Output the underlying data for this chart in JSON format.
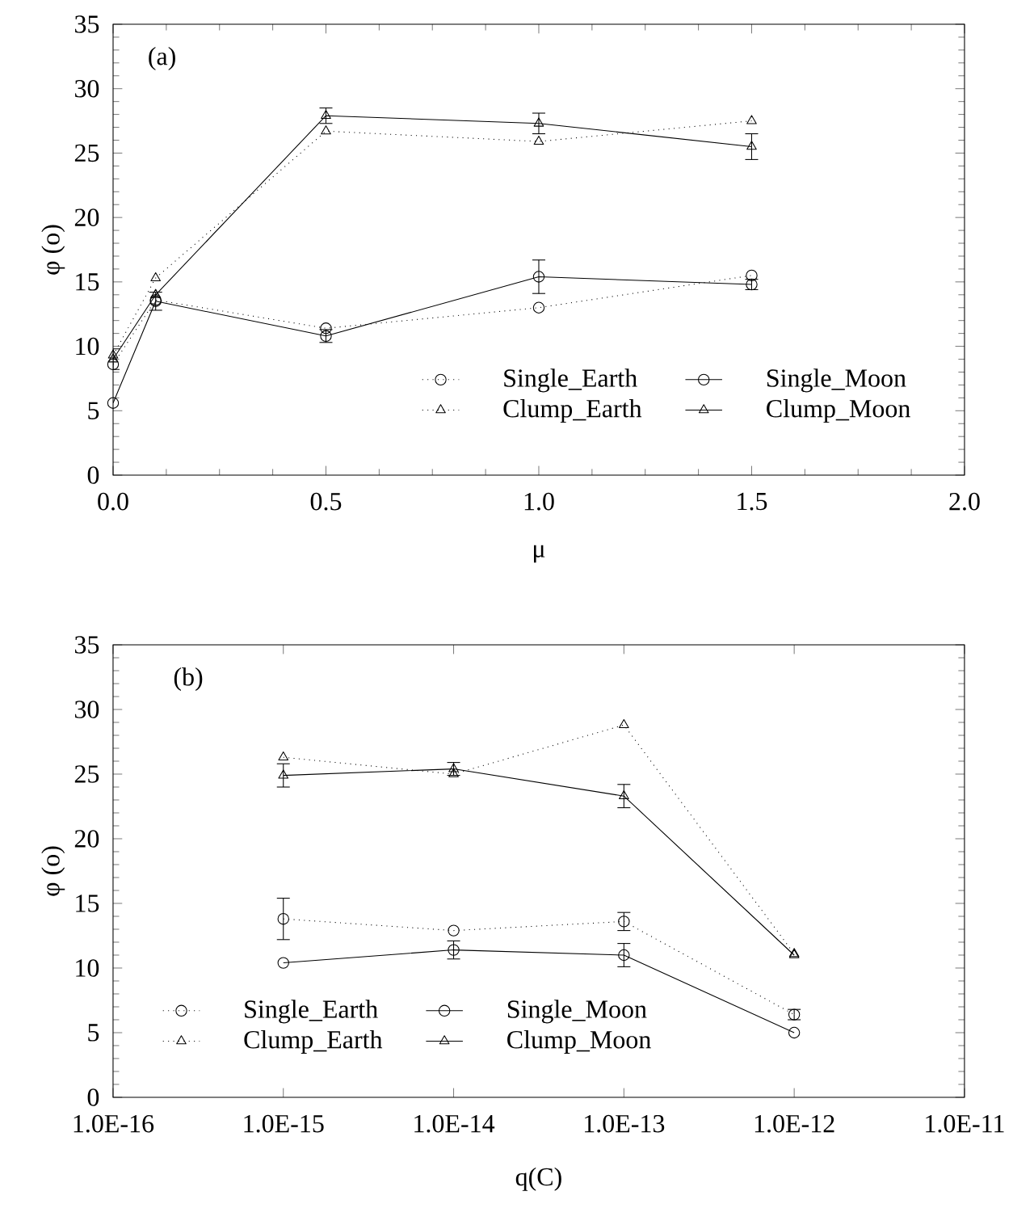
{
  "chart_data": [
    {
      "type": "line",
      "xlabel": "μ",
      "ylabel": "φ (o)",
      "annotations": [
        "(a)"
      ],
      "x": [
        0,
        0.1,
        0.5,
        1.0,
        1.5
      ],
      "xlim": [
        0,
        2
      ],
      "xticks": [
        {
          "value": 0,
          "label": "0.0"
        },
        {
          "value": 0.5,
          "label": "0.5"
        },
        {
          "value": 1,
          "label": "1.0"
        },
        {
          "value": 1.5,
          "label": "1.5"
        },
        {
          "value": 2,
          "label": "2.0"
        }
      ],
      "ylim": [
        0,
        35
      ],
      "yticks": [
        0,
        5,
        10,
        15,
        20,
        25,
        30,
        35
      ],
      "grid": false,
      "legend": "bottom right",
      "series": [
        {
          "name": "Single_Earth",
          "color": "#000000",
          "marker": "circle",
          "line_style": "dotted",
          "values": [
            8.6,
            13.6,
            11.4,
            13.0,
            15.5
          ]
        },
        {
          "name": "Single_Moon",
          "color": "#000000",
          "marker": "circle",
          "line_style": "solid",
          "values": [
            5.6,
            13.5,
            10.8,
            15.4,
            14.8
          ],
          "errors": [
            null,
            0.7,
            0.5,
            1.3,
            0.4
          ]
        },
        {
          "name": "Clump_Earth",
          "color": "#000000",
          "marker": "triangle",
          "line_style": "dotted",
          "values": [
            9.3,
            15.3,
            26.7,
            25.9,
            27.5
          ]
        },
        {
          "name": "Clump_Moon",
          "color": "#000000",
          "marker": "triangle",
          "line_style": "solid",
          "values": [
            9.0,
            14.0,
            27.9,
            27.3,
            25.5
          ],
          "errors": [
            0.8,
            null,
            0.6,
            0.8,
            1.0
          ]
        }
      ]
    },
    {
      "type": "line",
      "xlabel": "q(C)",
      "ylabel": "φ (o)",
      "annotations": [
        "(b)"
      ],
      "log": "x",
      "x": [
        1e-15,
        1e-14,
        1e-13,
        1e-12
      ],
      "xlim": [
        1e-16,
        1e-11
      ],
      "xticks": [
        {
          "value": 1e-16,
          "label": "1.0E-16"
        },
        {
          "value": 1e-15,
          "label": "1.0E-15"
        },
        {
          "value": 1e-14,
          "label": "1.0E-14"
        },
        {
          "value": 1e-13,
          "label": "1.0E-13"
        },
        {
          "value": 1e-12,
          "label": "1.0E-12"
        },
        {
          "value": 1e-11,
          "label": "1.0E-11"
        }
      ],
      "ylim": [
        0,
        35
      ],
      "yticks": [
        0,
        5,
        10,
        15,
        20,
        25,
        30,
        35
      ],
      "grid": false,
      "legend": "bottom left",
      "series": [
        {
          "name": "Single_Earth",
          "color": "#000000",
          "marker": "circle",
          "line_style": "dotted",
          "values": [
            13.8,
            12.9,
            13.6,
            6.4
          ],
          "errors": [
            1.6,
            null,
            0.7,
            0.4
          ]
        },
        {
          "name": "Single_Moon",
          "color": "#000000",
          "marker": "circle",
          "line_style": "solid",
          "values": [
            10.4,
            11.4,
            11.0,
            5.0
          ],
          "errors": [
            null,
            0.7,
            0.9,
            null
          ]
        },
        {
          "name": "Clump_Earth",
          "color": "#000000",
          "marker": "triangle",
          "line_style": "dotted",
          "values": [
            26.3,
            25.0,
            28.8,
            11.1
          ]
        },
        {
          "name": "Clump_Moon",
          "color": "#000000",
          "marker": "triangle",
          "line_style": "solid",
          "values": [
            24.9,
            25.4,
            23.3,
            11.0
          ],
          "errors": [
            0.9,
            0.5,
            0.9,
            null
          ]
        }
      ]
    }
  ]
}
